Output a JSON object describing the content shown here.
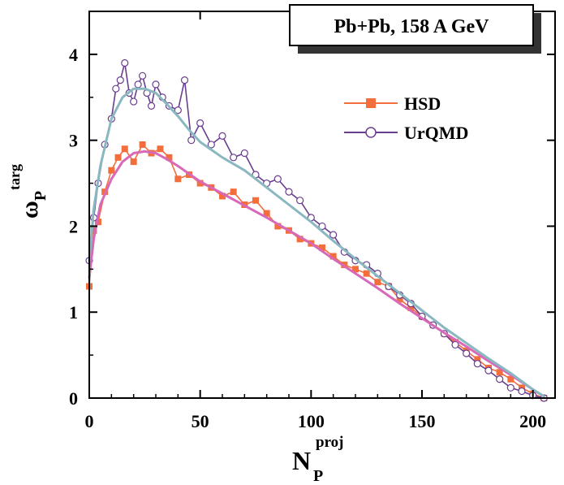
{
  "chart_data": {
    "type": "line",
    "title": "Pb+Pb, 158 A GeV",
    "xlabel": {
      "main": "N",
      "sup": "proj",
      "sub": "P"
    },
    "ylabel": {
      "main": "ω",
      "sup": "targ",
      "sub": "P"
    },
    "xlim": [
      0,
      210
    ],
    "ylim": [
      0,
      4.5
    ],
    "xticks": [
      0,
      50,
      100,
      150,
      200
    ],
    "yticks": [
      0,
      1,
      2,
      3,
      4
    ],
    "grid": false,
    "legend_position": "upper-right",
    "series": [
      {
        "name": "HSD",
        "color": "#f26e3c",
        "fit_color": "#d868b8",
        "marker": "filled-square",
        "x": [
          0,
          2,
          4,
          7,
          10,
          13,
          16,
          20,
          24,
          28,
          32,
          36,
          40,
          45,
          50,
          55,
          60,
          65,
          70,
          75,
          80,
          85,
          90,
          95,
          100,
          105,
          110,
          115,
          120,
          125,
          130,
          135,
          140,
          145,
          150,
          155,
          160,
          165,
          170,
          175,
          180,
          185,
          190,
          195,
          200,
          205
        ],
        "y": [
          1.3,
          1.95,
          2.05,
          2.4,
          2.65,
          2.8,
          2.9,
          2.75,
          2.95,
          2.85,
          2.9,
          2.8,
          2.55,
          2.6,
          2.5,
          2.45,
          2.35,
          2.4,
          2.25,
          2.3,
          2.15,
          2.0,
          1.95,
          1.85,
          1.8,
          1.75,
          1.65,
          1.55,
          1.5,
          1.45,
          1.35,
          1.3,
          1.15,
          1.05,
          0.95,
          0.85,
          0.75,
          0.65,
          0.55,
          0.45,
          0.35,
          0.3,
          0.22,
          0.12,
          0.05,
          0.0
        ],
        "fit": {
          "x": [
            0,
            2,
            5,
            10,
            15,
            20,
            25,
            30,
            35,
            40,
            50,
            60,
            70,
            80,
            90,
            100,
            110,
            120,
            130,
            140,
            150,
            160,
            170,
            180,
            190,
            200,
            205
          ],
          "y": [
            1.4,
            1.85,
            2.25,
            2.55,
            2.75,
            2.85,
            2.87,
            2.85,
            2.78,
            2.7,
            2.52,
            2.38,
            2.24,
            2.1,
            1.95,
            1.8,
            1.62,
            1.45,
            1.28,
            1.1,
            0.93,
            0.76,
            0.6,
            0.43,
            0.27,
            0.1,
            0.02
          ]
        }
      },
      {
        "name": "UrQMD",
        "color": "#6a3d8f",
        "fit_color": "#8ab8c0",
        "marker": "open-circle",
        "x": [
          0,
          2,
          4,
          7,
          10,
          12,
          14,
          16,
          18,
          20,
          22,
          24,
          26,
          28,
          30,
          33,
          36,
          40,
          43,
          46,
          50,
          55,
          60,
          65,
          70,
          75,
          80,
          85,
          90,
          95,
          100,
          105,
          110,
          115,
          120,
          125,
          130,
          135,
          140,
          145,
          150,
          155,
          160,
          165,
          170,
          175,
          180,
          185,
          190,
          195,
          200,
          205
        ],
        "y": [
          1.6,
          2.1,
          2.5,
          2.95,
          3.25,
          3.6,
          3.7,
          3.9,
          3.55,
          3.45,
          3.65,
          3.75,
          3.55,
          3.4,
          3.65,
          3.5,
          3.4,
          3.35,
          3.7,
          3.0,
          3.2,
          2.95,
          3.05,
          2.8,
          2.85,
          2.6,
          2.5,
          2.55,
          2.4,
          2.3,
          2.1,
          2.0,
          1.9,
          1.7,
          1.6,
          1.55,
          1.45,
          1.3,
          1.2,
          1.1,
          0.95,
          0.85,
          0.75,
          0.62,
          0.52,
          0.4,
          0.32,
          0.22,
          0.12,
          0.08,
          0.03,
          0.0
        ],
        "fit": {
          "x": [
            0,
            2,
            5,
            10,
            15,
            20,
            25,
            30,
            35,
            40,
            45,
            50,
            60,
            70,
            80,
            90,
            100,
            110,
            120,
            130,
            140,
            150,
            160,
            170,
            180,
            190,
            200,
            205
          ],
          "y": [
            1.6,
            2.2,
            2.7,
            3.25,
            3.5,
            3.6,
            3.6,
            3.55,
            3.42,
            3.28,
            3.12,
            2.98,
            2.8,
            2.65,
            2.45,
            2.25,
            2.05,
            1.83,
            1.62,
            1.42,
            1.22,
            1.02,
            0.82,
            0.64,
            0.46,
            0.29,
            0.1,
            0.02
          ]
        }
      }
    ]
  }
}
